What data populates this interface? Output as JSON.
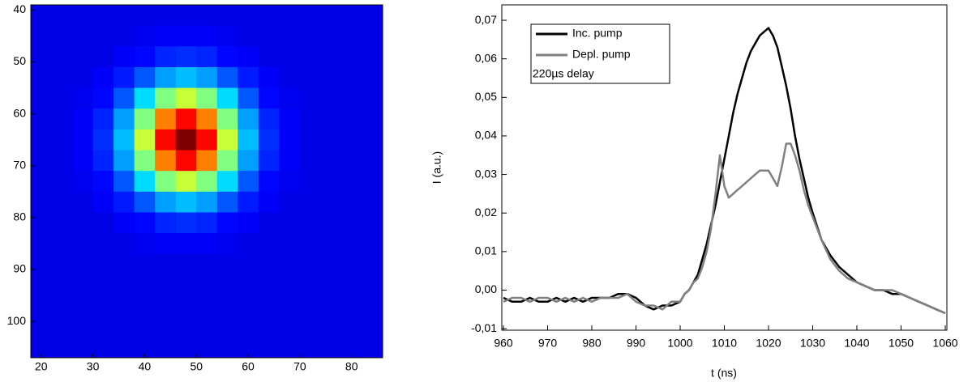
{
  "chart_data": [
    {
      "type": "heatmap",
      "colormap": "jet",
      "x": [
        20,
        24,
        28,
        32,
        36,
        40,
        44,
        48,
        52,
        56,
        60,
        64,
        68,
        72,
        76,
        80,
        84
      ],
      "y": [
        41,
        45,
        49,
        53,
        57,
        61,
        65,
        69,
        73,
        77,
        81,
        85,
        89,
        93,
        97,
        101,
        105
      ],
      "z": [
        [
          0.1,
          0.1,
          0.1,
          0.1,
          0.1,
          0.1,
          0.1,
          0.1,
          0.1,
          0.1,
          0.1,
          0.1,
          0.1,
          0.1,
          0.1,
          0.1,
          0.1
        ],
        [
          0.1,
          0.1,
          0.1,
          0.1,
          0.1,
          0.11,
          0.12,
          0.12,
          0.12,
          0.11,
          0.1,
          0.1,
          0.1,
          0.1,
          0.1,
          0.1,
          0.1
        ],
        [
          0.1,
          0.1,
          0.1,
          0.1,
          0.12,
          0.13,
          0.16,
          0.17,
          0.16,
          0.13,
          0.12,
          0.1,
          0.1,
          0.1,
          0.1,
          0.1,
          0.1
        ],
        [
          0.1,
          0.1,
          0.1,
          0.12,
          0.15,
          0.21,
          0.28,
          0.31,
          0.28,
          0.21,
          0.15,
          0.12,
          0.1,
          0.1,
          0.1,
          0.1,
          0.1
        ],
        [
          0.1,
          0.1,
          0.11,
          0.13,
          0.21,
          0.34,
          0.5,
          0.57,
          0.5,
          0.34,
          0.21,
          0.13,
          0.11,
          0.1,
          0.1,
          0.1,
          0.1
        ],
        [
          0.1,
          0.1,
          0.12,
          0.16,
          0.28,
          0.5,
          0.75,
          0.87,
          0.75,
          0.5,
          0.28,
          0.16,
          0.12,
          0.1,
          0.1,
          0.1,
          0.1
        ],
        [
          0.1,
          0.1,
          0.12,
          0.17,
          0.31,
          0.57,
          0.87,
          1,
          0.87,
          0.57,
          0.31,
          0.17,
          0.12,
          0.1,
          0.1,
          0.1,
          0.1
        ],
        [
          0.1,
          0.1,
          0.12,
          0.16,
          0.28,
          0.5,
          0.75,
          0.87,
          0.75,
          0.5,
          0.28,
          0.16,
          0.12,
          0.1,
          0.1,
          0.1,
          0.1
        ],
        [
          0.1,
          0.1,
          0.11,
          0.13,
          0.21,
          0.34,
          0.5,
          0.57,
          0.5,
          0.34,
          0.21,
          0.13,
          0.11,
          0.1,
          0.1,
          0.1,
          0.1
        ],
        [
          0.1,
          0.1,
          0.1,
          0.12,
          0.15,
          0.21,
          0.28,
          0.31,
          0.28,
          0.21,
          0.15,
          0.12,
          0.1,
          0.1,
          0.1,
          0.1,
          0.1
        ],
        [
          0.1,
          0.1,
          0.1,
          0.1,
          0.12,
          0.13,
          0.16,
          0.17,
          0.16,
          0.13,
          0.12,
          0.1,
          0.1,
          0.1,
          0.1,
          0.1,
          0.1
        ],
        [
          0.1,
          0.1,
          0.1,
          0.1,
          0.1,
          0.11,
          0.12,
          0.12,
          0.12,
          0.11,
          0.1,
          0.1,
          0.1,
          0.1,
          0.1,
          0.1,
          0.1
        ],
        [
          0.1,
          0.1,
          0.1,
          0.1,
          0.1,
          0.1,
          0.1,
          0.1,
          0.1,
          0.1,
          0.1,
          0.1,
          0.1,
          0.1,
          0.1,
          0.1,
          0.1
        ],
        [
          0.1,
          0.1,
          0.1,
          0.1,
          0.1,
          0.1,
          0.1,
          0.1,
          0.1,
          0.1,
          0.1,
          0.1,
          0.1,
          0.1,
          0.1,
          0.1,
          0.1
        ],
        [
          0.1,
          0.1,
          0.1,
          0.1,
          0.1,
          0.1,
          0.1,
          0.1,
          0.1,
          0.1,
          0.1,
          0.1,
          0.1,
          0.1,
          0.1,
          0.1,
          0.1
        ],
        [
          0.1,
          0.1,
          0.1,
          0.1,
          0.1,
          0.1,
          0.1,
          0.1,
          0.1,
          0.1,
          0.1,
          0.1,
          0.1,
          0.1,
          0.1,
          0.1,
          0.1
        ],
        [
          0.1,
          0.1,
          0.1,
          0.1,
          0.1,
          0.1,
          0.1,
          0.1,
          0.1,
          0.1,
          0.1,
          0.1,
          0.1,
          0.1,
          0.1,
          0.1,
          0.1
        ]
      ],
      "xlim": [
        18,
        86
      ],
      "ylim": [
        39,
        107
      ],
      "y_reversed": true,
      "xticks": [
        20,
        30,
        40,
        50,
        60,
        70,
        80
      ],
      "yticks": [
        40,
        50,
        60,
        70,
        80,
        90,
        100
      ]
    },
    {
      "type": "line",
      "xlabel": "t (ns)",
      "ylabel": "I (a.u.)",
      "annotation": "220µs delay",
      "legend": "upper left",
      "x": [
        960,
        962,
        964,
        966,
        968,
        970,
        972,
        974,
        976,
        978,
        980,
        982,
        984,
        986,
        988,
        990,
        992,
        994,
        996,
        998,
        1000,
        1001,
        1002,
        1003,
        1004,
        1005,
        1006,
        1007,
        1008,
        1009,
        1010,
        1011,
        1012,
        1013,
        1014,
        1015,
        1016,
        1017,
        1018,
        1019,
        1020,
        1021,
        1022,
        1023,
        1024,
        1025,
        1026,
        1027,
        1028,
        1029,
        1030,
        1032,
        1034,
        1036,
        1038,
        1040,
        1042,
        1044,
        1046,
        1048,
        1050,
        1052,
        1054,
        1056,
        1058,
        1060
      ],
      "series": [
        {
          "name": "Inc. pump",
          "color": "#000000",
          "values": [
            -0.002,
            -0.003,
            -0.003,
            -0.002,
            -0.003,
            -0.003,
            -0.002,
            -0.003,
            -0.002,
            -0.003,
            -0.002,
            -0.002,
            -0.002,
            -0.001,
            -0.001,
            -0.002,
            -0.004,
            -0.005,
            -0.004,
            -0.004,
            -0.003,
            -0.001,
            0.0,
            0.002,
            0.004,
            0.008,
            0.012,
            0.017,
            0.022,
            0.028,
            0.034,
            0.04,
            0.046,
            0.051,
            0.055,
            0.059,
            0.062,
            0.064,
            0.066,
            0.067,
            0.068,
            0.066,
            0.063,
            0.058,
            0.053,
            0.047,
            0.04,
            0.034,
            0.029,
            0.024,
            0.02,
            0.013,
            0.009,
            0.006,
            0.004,
            0.002,
            0.001,
            0.0,
            0.0,
            -0.001,
            -0.001,
            -0.002,
            -0.003,
            -0.004,
            -0.005,
            -0.006
          ]
        },
        {
          "name": "Depl. pump",
          "color": "#808080",
          "values": [
            -0.003,
            -0.002,
            -0.002,
            -0.003,
            -0.002,
            -0.002,
            -0.003,
            -0.002,
            -0.003,
            -0.002,
            -0.003,
            -0.002,
            -0.002,
            -0.002,
            -0.001,
            -0.003,
            -0.004,
            -0.004,
            -0.005,
            -0.003,
            -0.003,
            -0.001,
            0.0,
            0.002,
            0.003,
            0.006,
            0.01,
            0.016,
            0.025,
            0.035,
            0.027,
            0.024,
            0.025,
            0.026,
            0.027,
            0.028,
            0.029,
            0.03,
            0.031,
            0.031,
            0.031,
            0.029,
            0.027,
            0.032,
            0.038,
            0.038,
            0.035,
            0.031,
            0.026,
            0.022,
            0.019,
            0.013,
            0.008,
            0.005,
            0.003,
            0.002,
            0.001,
            0.0,
            0.0,
            0.0,
            -0.001,
            -0.002,
            -0.003,
            -0.004,
            -0.005,
            -0.006
          ]
        }
      ],
      "xlim": [
        960,
        1060
      ],
      "ylim": [
        -0.0104,
        0.074
      ],
      "xticks": [
        960,
        970,
        980,
        990,
        1000,
        1010,
        1020,
        1030,
        1040,
        1050,
        1060
      ],
      "yticks": [
        {
          "value": -0.01,
          "label": "-0,01"
        },
        {
          "value": 0,
          "label": "0,00"
        },
        {
          "value": 0.01,
          "label": "0,01"
        },
        {
          "value": 0.02,
          "label": "0,02"
        },
        {
          "value": 0.03,
          "label": "0,03"
        },
        {
          "value": 0.04,
          "label": "0,04"
        },
        {
          "value": 0.05,
          "label": "0,05"
        },
        {
          "value": 0.06,
          "label": "0,06"
        },
        {
          "value": 0.07,
          "label": "0,07"
        }
      ]
    }
  ]
}
